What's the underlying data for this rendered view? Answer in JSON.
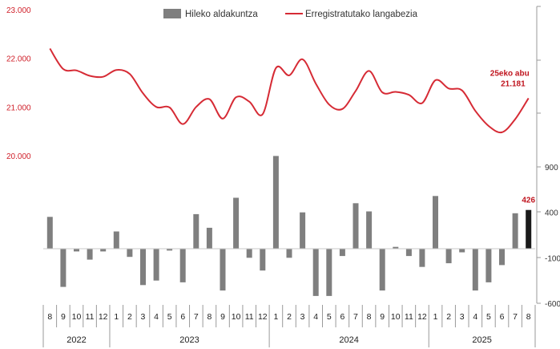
{
  "chart_data": {
    "type": "bar+line",
    "categories": [
      "8",
      "9",
      "10",
      "11",
      "12",
      "1",
      "2",
      "3",
      "4",
      "5",
      "6",
      "7",
      "8",
      "9",
      "10",
      "11",
      "12",
      "1",
      "2",
      "3",
      "4",
      "5",
      "6",
      "7",
      "8",
      "9",
      "10",
      "11",
      "12",
      "1",
      "2",
      "3",
      "4",
      "5",
      "6",
      "7",
      "8"
    ],
    "years": [
      {
        "label": "2022",
        "count": 5
      },
      {
        "label": "2023",
        "count": 12
      },
      {
        "label": "2024",
        "count": 12
      },
      {
        "label": "2025",
        "count": 8
      }
    ],
    "series": [
      {
        "name": "Hileko aldakuntza",
        "type": "bar",
        "axis": "right",
        "color": "#7f7f7f",
        "highlight_color": "#1a1a1a",
        "values": [
          350,
          -420,
          -30,
          -120,
          -30,
          190,
          -90,
          -400,
          -350,
          -20,
          -370,
          380,
          230,
          -460,
          560,
          -100,
          -240,
          1020,
          -100,
          400,
          -520,
          -520,
          -80,
          500,
          410,
          -460,
          20,
          -80,
          -200,
          580,
          -160,
          -40,
          -460,
          -370,
          -180,
          390,
          426
        ]
      },
      {
        "name": "Erregistratutako langabezia",
        "type": "line",
        "axis": "left",
        "color": "#d62b35",
        "values": [
          22200,
          21780,
          21750,
          21640,
          21620,
          21760,
          21680,
          21280,
          21000,
          20990,
          20650,
          21000,
          21160,
          20760,
          21200,
          21110,
          20850,
          21800,
          21650,
          21980,
          21480,
          21050,
          20960,
          21330,
          21740,
          21300,
          21310,
          21250,
          21080,
          21550,
          21380,
          21340,
          20920,
          20610,
          20480,
          20750,
          21181
        ]
      }
    ],
    "left_axis": {
      "ticks": [
        "23.000",
        "22.000",
        "21.000",
        "20.000"
      ],
      "ylim": [
        20000,
        23000
      ]
    },
    "right_axis": {
      "ticks": [
        "900",
        "400",
        "-100",
        "-600"
      ],
      "ylim": [
        -600,
        1500
      ]
    },
    "annotations": {
      "bar_last": "426",
      "line_last_line1": "25eko abu",
      "line_last_line2": "21.181"
    },
    "legend": {
      "position": "top-center"
    }
  }
}
